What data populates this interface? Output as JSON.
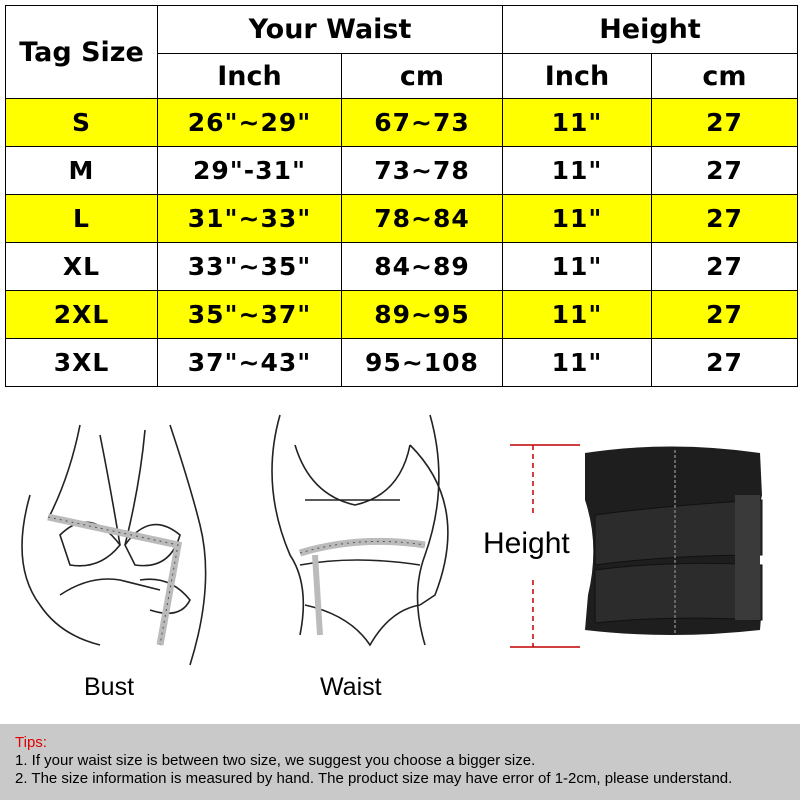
{
  "table": {
    "tag_header": "Tag Size",
    "waist_header": "Your Waist",
    "height_header": "Height",
    "sub_headers": [
      "Inch",
      "cm",
      "Inch",
      "cm"
    ],
    "rows": [
      {
        "size": "S",
        "waist_inch": "26\"~29\"",
        "waist_cm": "67~73",
        "height_inch": "11\"",
        "height_cm": "27"
      },
      {
        "size": "M",
        "waist_inch": "29\"-31\"",
        "waist_cm": "73~78",
        "height_inch": "11\"",
        "height_cm": "27"
      },
      {
        "size": "L",
        "waist_inch": "31\"~33\"",
        "waist_cm": "78~84",
        "height_inch": "11\"",
        "height_cm": "27"
      },
      {
        "size": "XL",
        "waist_inch": "33\"~35\"",
        "waist_cm": "84~89",
        "height_inch": "11\"",
        "height_cm": "27"
      },
      {
        "size": "2XL",
        "waist_inch": "35\"~37\"",
        "waist_cm": "89~95",
        "height_inch": "11\"",
        "height_cm": "27"
      },
      {
        "size": "3XL",
        "waist_inch": "37\"~43\"",
        "waist_cm": "95~108",
        "height_inch": "11\"",
        "height_cm": "27"
      }
    ],
    "highlight_color": "#ffff00"
  },
  "illustrations": {
    "bust_label": "Bust",
    "waist_label": "Waist",
    "height_label": "Height"
  },
  "tips": {
    "title": "Tips:",
    "lines": [
      "1. If your waist size is between two size, we suggest you choose a bigger size.",
      "2. The size information is measured by hand. The product size may have error of 1-2cm, please understand."
    ],
    "title_color": "#e00000"
  }
}
